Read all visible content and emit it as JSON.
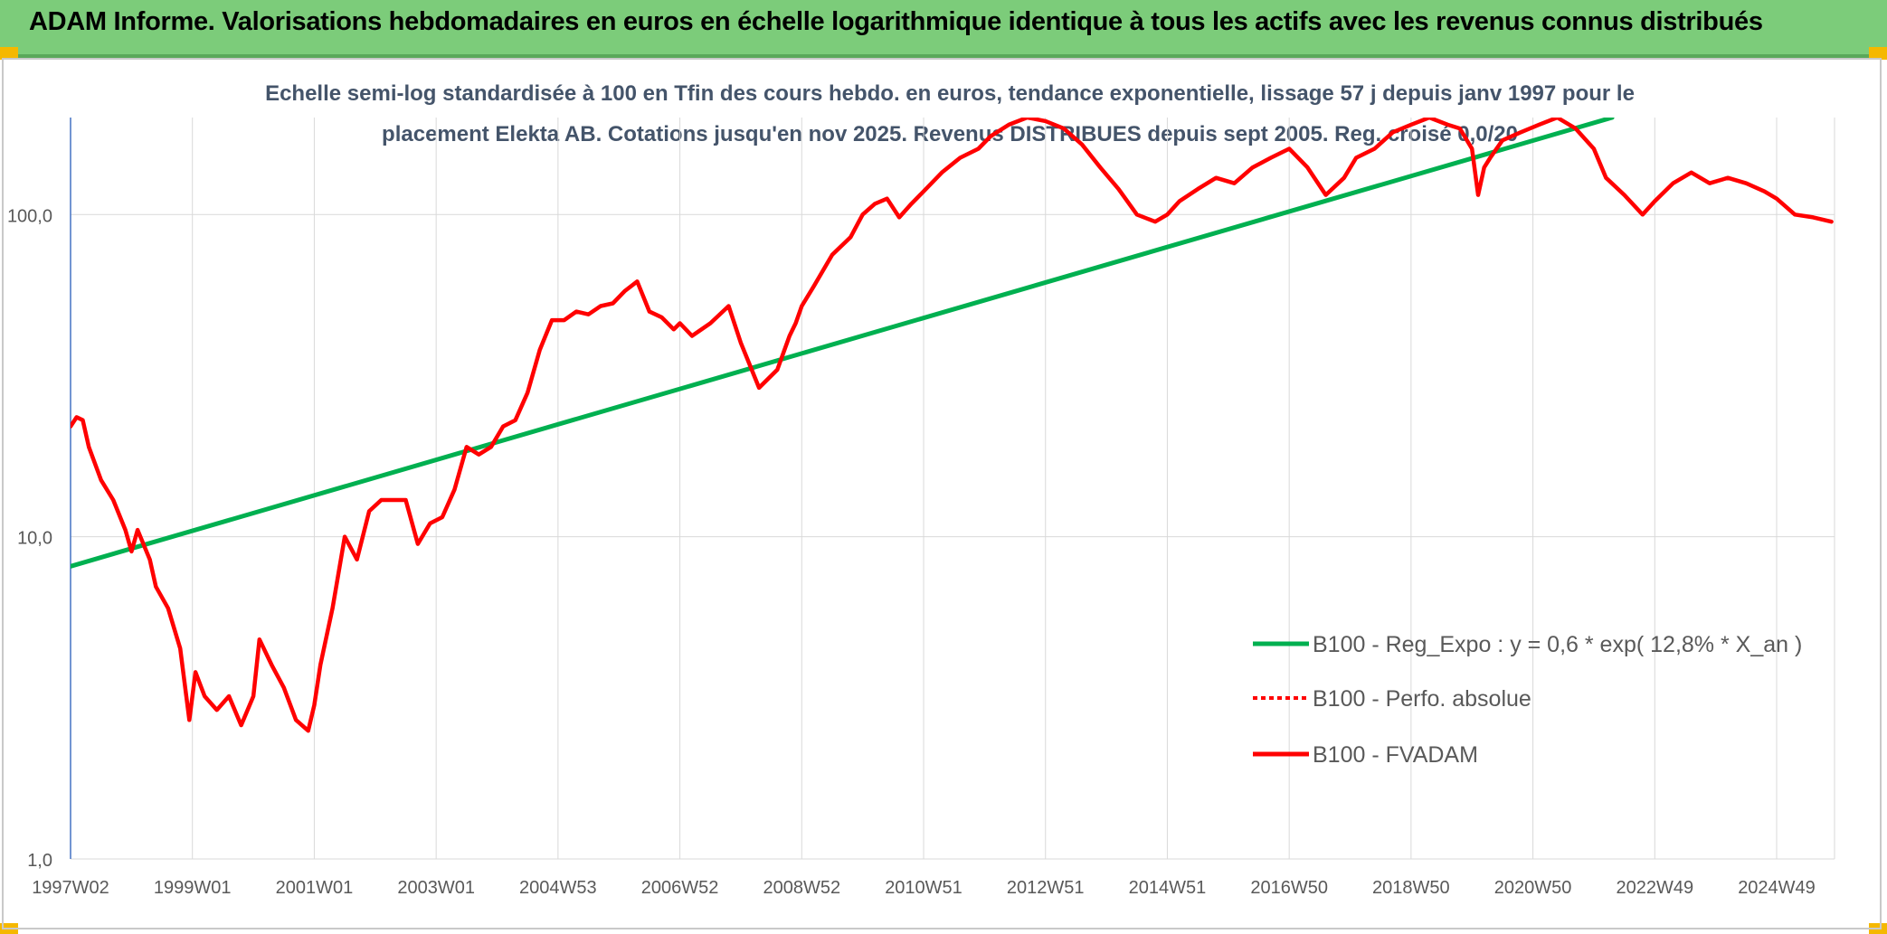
{
  "header": {
    "title": "ADAM Informe. Valorisations hebdomadaires en euros en échelle logarithmique identique à tous les actifs avec les revenus connus distribués"
  },
  "colors": {
    "banner": "#7ccc7a",
    "corner": "#f5b800",
    "trend": "#00b050",
    "series": "#ff0000",
    "axis_text": "#595959",
    "grid": "#d9d9d9",
    "y_axis_line": "#4472c4"
  },
  "chart_data": {
    "type": "line",
    "subtitle_line1": "Echelle semi-log standardisée à 100 en Tfin des cours hebdo. en euros, tendance exponentielle, lissage 57 j depuis janv 1997 pour le",
    "subtitle_line2": "placement Elekta AB. Cotations jusqu'en nov 2025. Revenus DISTRIBUES depuis sept 2005. Reg. croisé 0,0/20",
    "y_scale": "log",
    "ylim": [
      1,
      200
    ],
    "xlim": [
      1997.0,
      2025.95
    ],
    "y_ticks": [
      {
        "value": 1,
        "label": "1,0"
      },
      {
        "value": 10,
        "label": "10,0"
      },
      {
        "value": 100,
        "label": "100,0"
      }
    ],
    "x_ticks": [
      {
        "value": 1997.0,
        "label": "1997W02"
      },
      {
        "value": 1999.0,
        "label": "1999W01"
      },
      {
        "value": 2001.0,
        "label": "2001W01"
      },
      {
        "value": 2003.0,
        "label": "2003W01"
      },
      {
        "value": 2005.0,
        "label": "2004W53"
      },
      {
        "value": 2007.0,
        "label": "2006W52"
      },
      {
        "value": 2009.0,
        "label": "2008W52"
      },
      {
        "value": 2011.0,
        "label": "2010W51"
      },
      {
        "value": 2013.0,
        "label": "2012W51"
      },
      {
        "value": 2015.0,
        "label": "2014W51"
      },
      {
        "value": 2017.0,
        "label": "2016W50"
      },
      {
        "value": 2019.0,
        "label": "2018W50"
      },
      {
        "value": 2021.0,
        "label": "2020W50"
      },
      {
        "value": 2023.0,
        "label": "2022W49"
      },
      {
        "value": 2025.0,
        "label": "2024W49"
      }
    ],
    "grid": true,
    "legend_position": "bottom-right",
    "legend": [
      {
        "label": "B100 - Reg_Expo : y = 0,6 *  exp( 12,8% *  X_an )",
        "style": "solid",
        "color": "#00b050"
      },
      {
        "label": "B100 - Perfo. absolue",
        "style": "dotted",
        "color": "#ff0000"
      },
      {
        "label": "B100 - FVADAM",
        "style": "solid",
        "color": "#ff0000"
      }
    ],
    "series": [
      {
        "name": "B100 - Reg_Expo : y = 0,6 *  exp( 12,8% *  X_an )",
        "color": "#00b050",
        "x": [
          1997.0,
          2022.3
        ],
        "y": [
          8.1,
          200
        ]
      },
      {
        "name": "B100 - FVADAM",
        "color": "#ff0000",
        "x": [
          1997.0,
          1997.1,
          1997.2,
          1997.3,
          1997.5,
          1997.7,
          1997.9,
          1998.0,
          1998.1,
          1998.3,
          1998.4,
          1998.6,
          1998.8,
          1998.95,
          1999.05,
          1999.2,
          1999.4,
          1999.6,
          1999.8,
          2000.0,
          2000.1,
          2000.3,
          2000.5,
          2000.7,
          2000.9,
          2001.0,
          2001.1,
          2001.3,
          2001.5,
          2001.7,
          2001.9,
          2002.1,
          2002.3,
          2002.5,
          2002.7,
          2002.9,
          2003.1,
          2003.3,
          2003.5,
          2003.7,
          2003.9,
          2004.1,
          2004.3,
          2004.5,
          2004.7,
          2004.9,
          2005.1,
          2005.3,
          2005.5,
          2005.7,
          2005.9,
          2006.1,
          2006.3,
          2006.5,
          2006.7,
          2006.9,
          2007.0,
          2007.2,
          2007.5,
          2007.8,
          2008.0,
          2008.3,
          2008.6,
          2008.8,
          2008.9,
          2009.0,
          2009.2,
          2009.5,
          2009.8,
          2010.0,
          2010.2,
          2010.4,
          2010.6,
          2010.8,
          2011.0,
          2011.3,
          2011.6,
          2011.9,
          2012.1,
          2012.4,
          2012.7,
          2013.0,
          2013.3,
          2013.6,
          2013.9,
          2014.2,
          2014.5,
          2014.8,
          2015.0,
          2015.2,
          2015.5,
          2015.8,
          2016.1,
          2016.4,
          2016.7,
          2017.0,
          2017.3,
          2017.6,
          2017.9,
          2018.1,
          2018.4,
          2018.7,
          2019.0,
          2019.3,
          2019.6,
          2019.8,
          2020.0,
          2020.1,
          2020.2,
          2020.3,
          2020.5,
          2020.8,
          2021.1,
          2021.4,
          2021.7,
          2022.0,
          2022.2,
          2022.5,
          2022.8,
          2023.0,
          2023.3,
          2023.6,
          2023.9,
          2024.2,
          2024.5,
          2024.8,
          2025.0,
          2025.3,
          2025.6,
          2025.9
        ],
        "y": [
          22,
          23.5,
          23,
          19,
          15,
          13,
          10.5,
          9,
          10.5,
          8.5,
          7,
          6,
          4.5,
          2.7,
          3.8,
          3.2,
          2.9,
          3.2,
          2.6,
          3.2,
          4.8,
          4.0,
          3.4,
          2.7,
          2.5,
          3.0,
          4.0,
          6.0,
          10,
          8.5,
          12,
          13,
          13,
          13,
          9.5,
          11,
          11.5,
          14,
          19,
          18,
          19,
          22,
          23,
          28,
          38,
          47,
          47,
          50,
          49,
          52,
          53,
          58,
          62,
          50,
          48,
          44,
          46,
          42,
          46,
          52,
          40,
          29,
          33,
          42,
          46,
          52,
          60,
          75,
          85,
          100,
          108,
          112,
          98,
          108,
          118,
          135,
          150,
          160,
          175,
          190,
          200,
          195,
          185,
          165,
          140,
          120,
          100,
          95,
          100,
          110,
          120,
          130,
          125,
          140,
          150,
          160,
          140,
          115,
          130,
          150,
          160,
          180,
          190,
          200,
          190,
          185,
          160,
          115,
          140,
          150,
          170,
          180,
          190,
          200,
          185,
          160,
          130,
          115,
          100,
          110,
          125,
          135,
          125,
          130,
          125,
          118,
          112,
          100,
          98,
          95
        ]
      }
    ]
  }
}
